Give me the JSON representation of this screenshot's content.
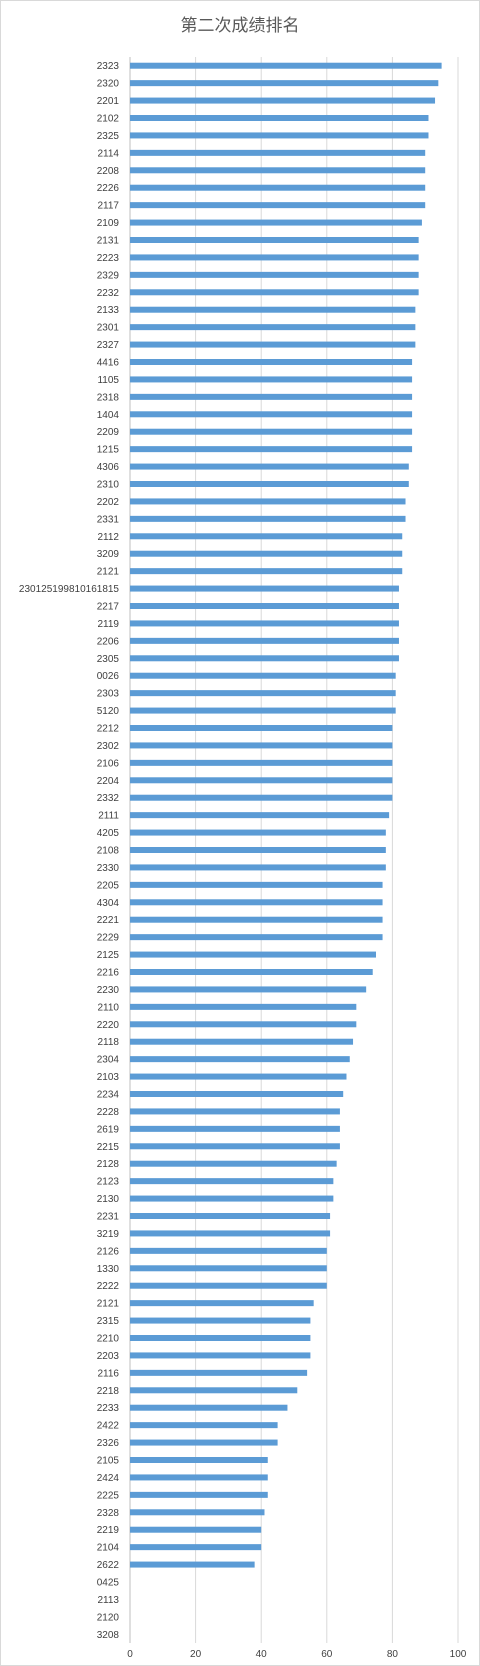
{
  "chart_data": {
    "type": "bar",
    "orientation": "horizontal",
    "title": "第二次成绩排名",
    "xlabel": "",
    "ylabel": "",
    "xlim": [
      0,
      100
    ],
    "x_ticks": [
      0,
      20,
      40,
      60,
      80,
      100
    ],
    "grid": "vertical",
    "legend": "none",
    "bar_color": "#5b9bd5",
    "categories": [
      "2323",
      "2320",
      "2201",
      "2102",
      "2325",
      "2114",
      "2208",
      "2226",
      "2117",
      "2109",
      "2131",
      "2223",
      "2329",
      "2232",
      "2133",
      "2301",
      "2327",
      "4416",
      "1105",
      "2318",
      "1404",
      "2209",
      "1215",
      "4306",
      "2310",
      "2202",
      "2331",
      "2112",
      "3209",
      "2121",
      "230125199810161815",
      "2217",
      "2119",
      "2206",
      "2305",
      "0026",
      "2303",
      "5120",
      "2212",
      "2302",
      "2106",
      "2204",
      "2332",
      "2111",
      "4205",
      "2108",
      "2330",
      "2205",
      "4304",
      "2221",
      "2229",
      "2125",
      "2216",
      "2230",
      "2110",
      "2220",
      "2118",
      "2304",
      "2103",
      "2234",
      "2228",
      "2619",
      "2215",
      "2128",
      "2123",
      "2130",
      "2231",
      "3219",
      "2126",
      "1330",
      "2222",
      "2121",
      "2315",
      "2210",
      "2203",
      "2116",
      "2218",
      "2233",
      "2422",
      "2326",
      "2105",
      "2424",
      "2225",
      "2328",
      "2219",
      "2104",
      "2622",
      "0425",
      "2113",
      "2120",
      "3208"
    ],
    "values": [
      95,
      94,
      93,
      91,
      91,
      90,
      90,
      90,
      90,
      89,
      88,
      88,
      88,
      88,
      87,
      87,
      87,
      86,
      86,
      86,
      86,
      86,
      86,
      85,
      85,
      84,
      84,
      83,
      83,
      83,
      82,
      82,
      82,
      82,
      82,
      81,
      81,
      81,
      80,
      80,
      80,
      80,
      80,
      79,
      78,
      78,
      78,
      77,
      77,
      77,
      77,
      75,
      74,
      72,
      69,
      69,
      68,
      67,
      66,
      65,
      64,
      64,
      64,
      63,
      62,
      62,
      61,
      61,
      60,
      60,
      60,
      56,
      55,
      55,
      55,
      54,
      51,
      48,
      45,
      45,
      42,
      42,
      42,
      41,
      40,
      40,
      38,
      0,
      0,
      0,
      0
    ]
  }
}
